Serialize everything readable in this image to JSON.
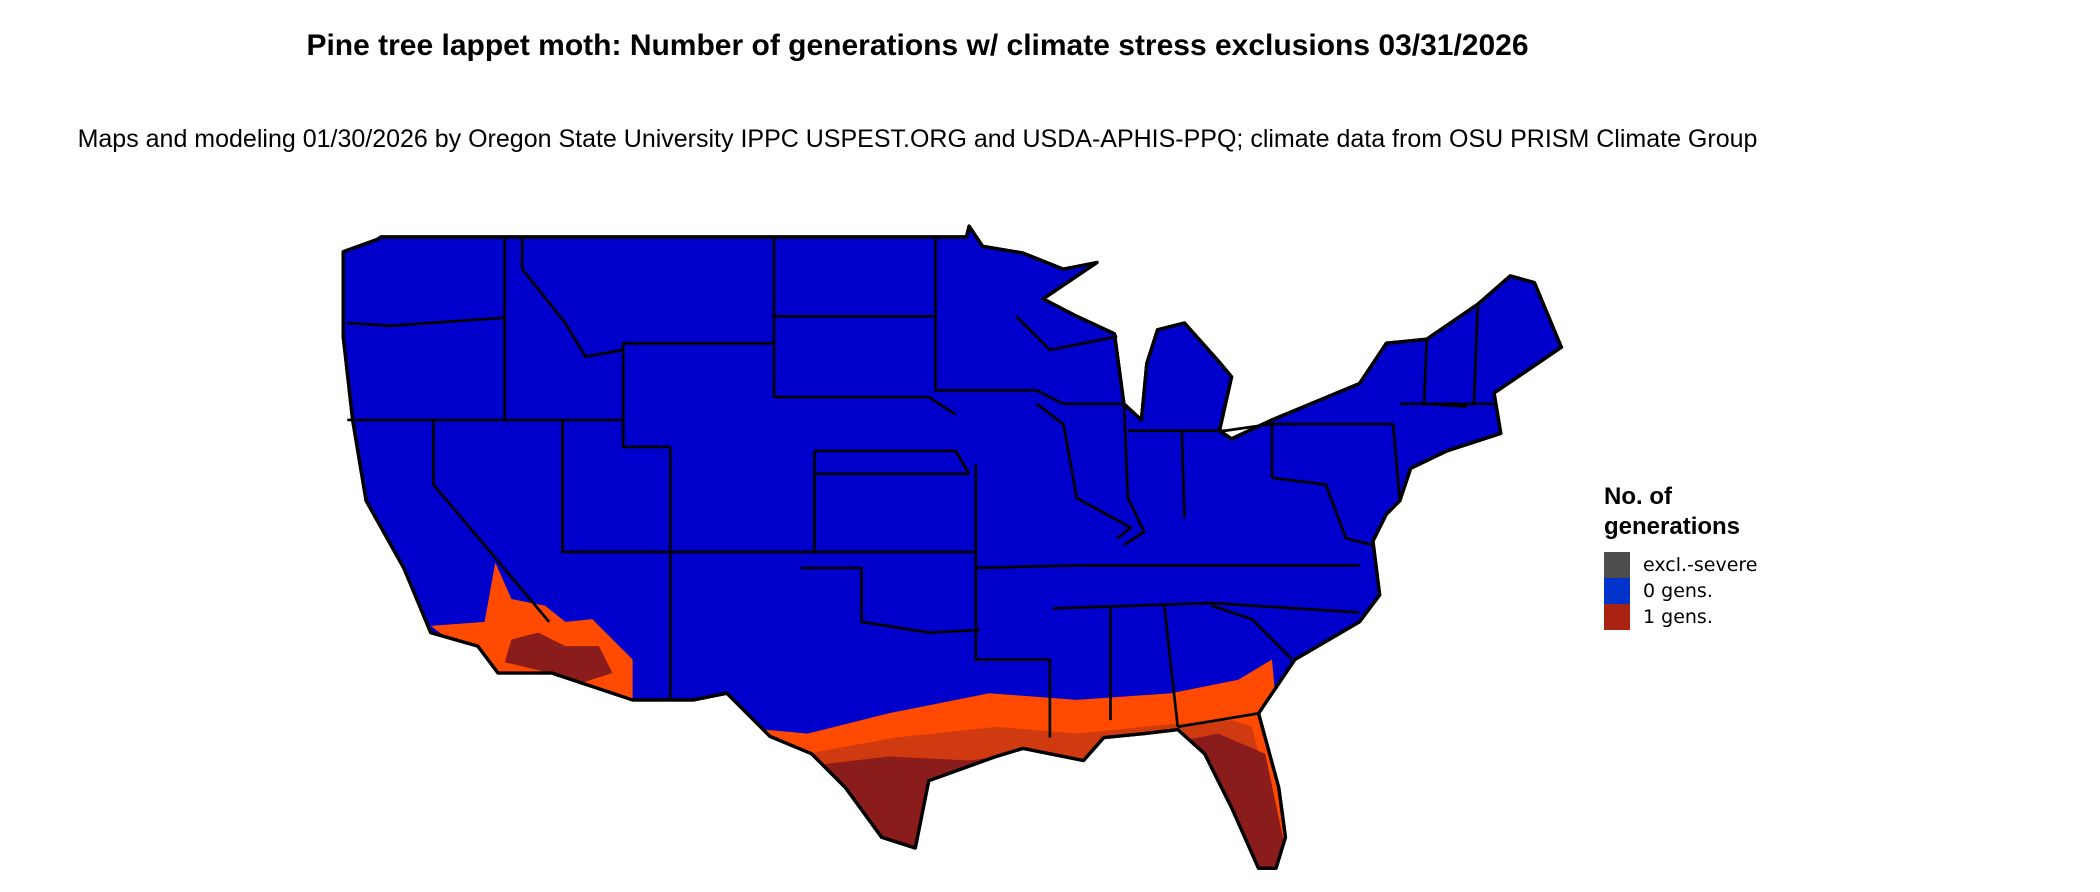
{
  "title": "Pine tree lappet moth: Number of generations w/ climate stress exclusions 03/31/2026",
  "subtitle": "Maps and modeling 01/30/2026 by Oregon State University IPPC USPEST.ORG and USDA-APHIS-PPQ; climate data from OSU PRISM Climate Group",
  "map": {
    "region": "Contiguous United States",
    "colors": {
      "zero_gens_fill": "#0000CC",
      "one_gen_light": "#FF4A00",
      "one_gen_mid": "#D03A10",
      "one_gen_dark": "#8B1C1C",
      "state_borders": "#000000"
    }
  },
  "legend": {
    "title": "No. of generations",
    "items": [
      {
        "label": "excl.-severe",
        "color": "#4D4D4D"
      },
      {
        "label": "0 gens.",
        "color": "#0033CC"
      },
      {
        "label": "1 gens.",
        "color": "#AA2211"
      }
    ]
  }
}
